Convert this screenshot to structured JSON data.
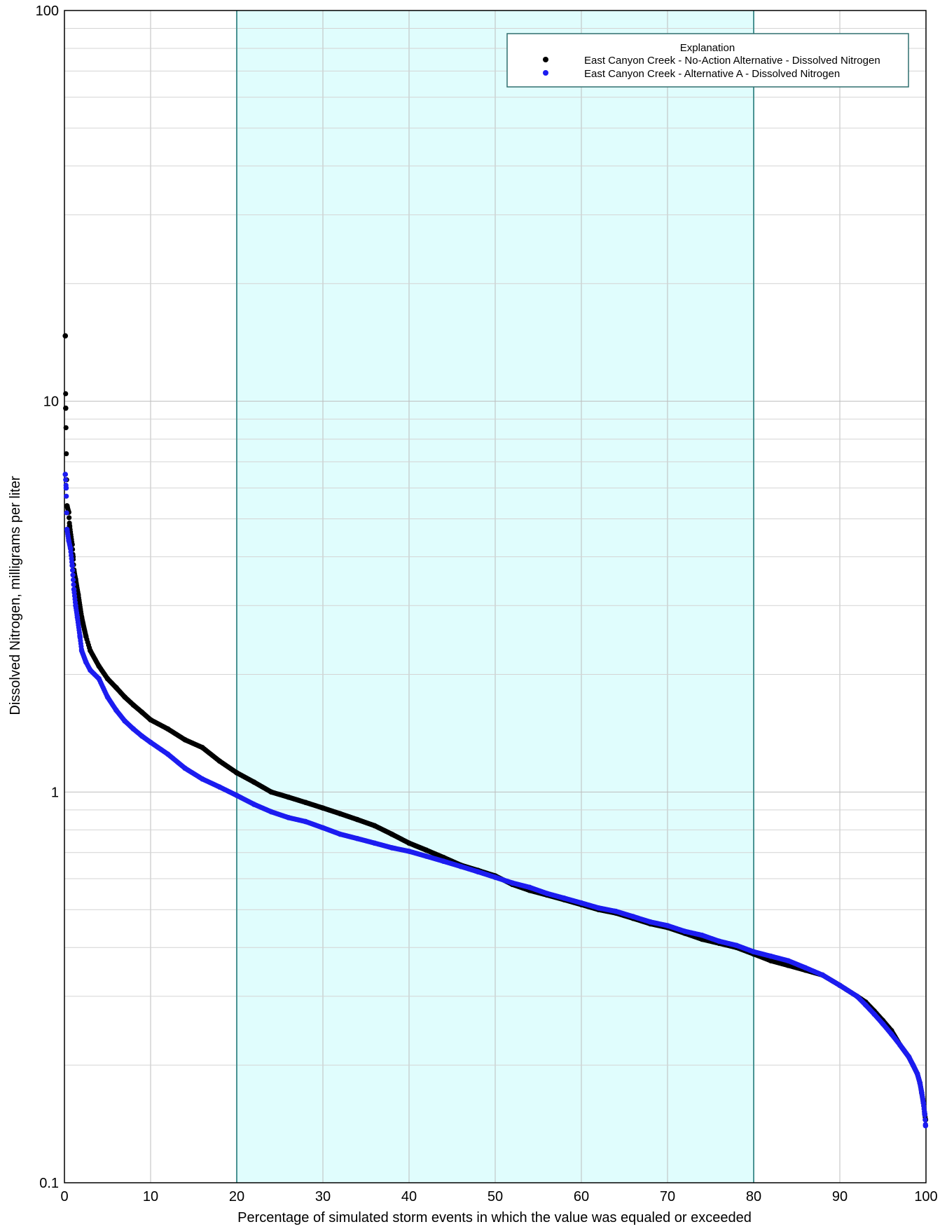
{
  "colors": {
    "background": "#ffffff",
    "band_fill": "#e0fdfd",
    "band_edge": "#4a9393",
    "grid_major": "#bdbdbd",
    "grid_minor": "#d4d4d4",
    "axis": "#000000",
    "legend_border": "#2f6f6f"
  },
  "chart_data": {
    "type": "scatter",
    "title": "",
    "xlabel": "Percentage of simulated storm events in which the value was equaled or exceeded",
    "ylabel": "Dissolved Nitrogen, milligrams per liter",
    "xlim": [
      0,
      100
    ],
    "ylim": [
      0.1,
      100
    ],
    "yscale": "log",
    "x_ticks": [
      "0",
      "10",
      "20",
      "30",
      "40",
      "50",
      "60",
      "70",
      "80",
      "90",
      "100"
    ],
    "y_ticks": [
      "0.1",
      "1",
      "10",
      "100"
    ],
    "grid": true,
    "shaded_band": {
      "x_from": 20,
      "x_to": 80
    },
    "legend": {
      "title": "Explanation",
      "placement": "top-right",
      "entries": [
        "East Canyon Creek - No-Action Alternative - Dissolved Nitrogen",
        "East Canyon Creek - Alternative A - Dissolved Nitrogen"
      ]
    },
    "series": [
      {
        "name": "East Canyon Creek - No-Action Alternative - Dissolved Nitrogen",
        "color": "#000000",
        "points": [
          [
            0.1,
            14.7
          ],
          [
            0.15,
            9.6
          ],
          [
            0.3,
            5.4
          ],
          [
            0.5,
            5.2
          ],
          [
            0.6,
            4.8
          ],
          [
            0.9,
            4.3
          ],
          [
            1.0,
            4.0
          ],
          [
            1.1,
            3.7
          ],
          [
            1.3,
            3.5
          ],
          [
            1.6,
            3.2
          ],
          [
            2.0,
            2.8
          ],
          [
            2.5,
            2.5
          ],
          [
            3.0,
            2.3
          ],
          [
            4.0,
            2.1
          ],
          [
            5.0,
            1.95
          ],
          [
            6.0,
            1.85
          ],
          [
            7.0,
            1.75
          ],
          [
            8.0,
            1.67
          ],
          [
            9.0,
            1.6
          ],
          [
            10.0,
            1.53
          ],
          [
            12.0,
            1.45
          ],
          [
            14.0,
            1.36
          ],
          [
            16.0,
            1.3
          ],
          [
            18.0,
            1.2
          ],
          [
            20.0,
            1.12
          ],
          [
            22.0,
            1.06
          ],
          [
            24.0,
            1.0
          ],
          [
            26.0,
            0.97
          ],
          [
            28.0,
            0.94
          ],
          [
            30.0,
            0.91
          ],
          [
            32.0,
            0.88
          ],
          [
            34.0,
            0.85
          ],
          [
            36.0,
            0.82
          ],
          [
            38.0,
            0.78
          ],
          [
            40.0,
            0.74
          ],
          [
            42.0,
            0.71
          ],
          [
            44.0,
            0.68
          ],
          [
            46.0,
            0.65
          ],
          [
            48.0,
            0.63
          ],
          [
            50.0,
            0.61
          ],
          [
            52.0,
            0.58
          ],
          [
            54.0,
            0.56
          ],
          [
            56.0,
            0.545
          ],
          [
            58.0,
            0.53
          ],
          [
            60.0,
            0.515
          ],
          [
            62.0,
            0.5
          ],
          [
            64.0,
            0.49
          ],
          [
            66.0,
            0.475
          ],
          [
            68.0,
            0.46
          ],
          [
            70.0,
            0.45
          ],
          [
            72.0,
            0.435
          ],
          [
            74.0,
            0.42
          ],
          [
            76.0,
            0.41
          ],
          [
            78.0,
            0.4
          ],
          [
            80.0,
            0.385
          ],
          [
            82.0,
            0.37
          ],
          [
            84.0,
            0.36
          ],
          [
            86.0,
            0.35
          ],
          [
            88.0,
            0.34
          ],
          [
            90.0,
            0.32
          ],
          [
            92.0,
            0.3
          ],
          [
            93.0,
            0.29
          ],
          [
            94.0,
            0.275
          ],
          [
            95.0,
            0.26
          ],
          [
            96.0,
            0.245
          ],
          [
            97.0,
            0.225
          ],
          [
            98.0,
            0.21
          ],
          [
            98.5,
            0.2
          ],
          [
            99.0,
            0.19
          ],
          [
            99.3,
            0.18
          ],
          [
            99.5,
            0.17
          ],
          [
            99.7,
            0.16
          ],
          [
            99.85,
            0.15
          ],
          [
            99.95,
            0.145
          ]
        ]
      },
      {
        "name": "East Canyon Creek - Alternative A - Dissolved Nitrogen",
        "color": "#1c1cf0",
        "points": [
          [
            0.1,
            6.5
          ],
          [
            0.2,
            6.0
          ],
          [
            0.3,
            4.7
          ],
          [
            0.5,
            4.4
          ],
          [
            0.7,
            4.2
          ],
          [
            0.9,
            3.8
          ],
          [
            1.1,
            3.3
          ],
          [
            1.3,
            3.0
          ],
          [
            1.5,
            2.8
          ],
          [
            1.8,
            2.5
          ],
          [
            2.0,
            2.3
          ],
          [
            2.5,
            2.15
          ],
          [
            3.0,
            2.05
          ],
          [
            4.0,
            1.95
          ],
          [
            5.0,
            1.75
          ],
          [
            6.0,
            1.62
          ],
          [
            7.0,
            1.52
          ],
          [
            8.0,
            1.45
          ],
          [
            9.0,
            1.39
          ],
          [
            10.0,
            1.34
          ],
          [
            12.0,
            1.25
          ],
          [
            14.0,
            1.15
          ],
          [
            16.0,
            1.08
          ],
          [
            18.0,
            1.03
          ],
          [
            20.0,
            0.98
          ],
          [
            22.0,
            0.93
          ],
          [
            24.0,
            0.89
          ],
          [
            26.0,
            0.86
          ],
          [
            28.0,
            0.84
          ],
          [
            30.0,
            0.81
          ],
          [
            32.0,
            0.78
          ],
          [
            34.0,
            0.76
          ],
          [
            36.0,
            0.74
          ],
          [
            38.0,
            0.72
          ],
          [
            40.0,
            0.705
          ],
          [
            42.0,
            0.685
          ],
          [
            44.0,
            0.665
          ],
          [
            46.0,
            0.645
          ],
          [
            48.0,
            0.625
          ],
          [
            50.0,
            0.605
          ],
          [
            52.0,
            0.585
          ],
          [
            54.0,
            0.57
          ],
          [
            56.0,
            0.55
          ],
          [
            58.0,
            0.535
          ],
          [
            60.0,
            0.52
          ],
          [
            62.0,
            0.505
          ],
          [
            64.0,
            0.495
          ],
          [
            66.0,
            0.48
          ],
          [
            68.0,
            0.465
          ],
          [
            70.0,
            0.455
          ],
          [
            72.0,
            0.44
          ],
          [
            74.0,
            0.43
          ],
          [
            76.0,
            0.415
          ],
          [
            78.0,
            0.405
          ],
          [
            80.0,
            0.39
          ],
          [
            82.0,
            0.38
          ],
          [
            84.0,
            0.37
          ],
          [
            86.0,
            0.355
          ],
          [
            88.0,
            0.34
          ],
          [
            90.0,
            0.32
          ],
          [
            92.0,
            0.3
          ],
          [
            93.0,
            0.285
          ],
          [
            94.0,
            0.27
          ],
          [
            95.0,
            0.255
          ],
          [
            96.0,
            0.24
          ],
          [
            97.0,
            0.225
          ],
          [
            98.0,
            0.21
          ],
          [
            98.5,
            0.2
          ],
          [
            99.0,
            0.19
          ],
          [
            99.3,
            0.18
          ],
          [
            99.5,
            0.17
          ],
          [
            99.7,
            0.16
          ],
          [
            99.85,
            0.15
          ],
          [
            99.95,
            0.14
          ]
        ]
      }
    ]
  }
}
